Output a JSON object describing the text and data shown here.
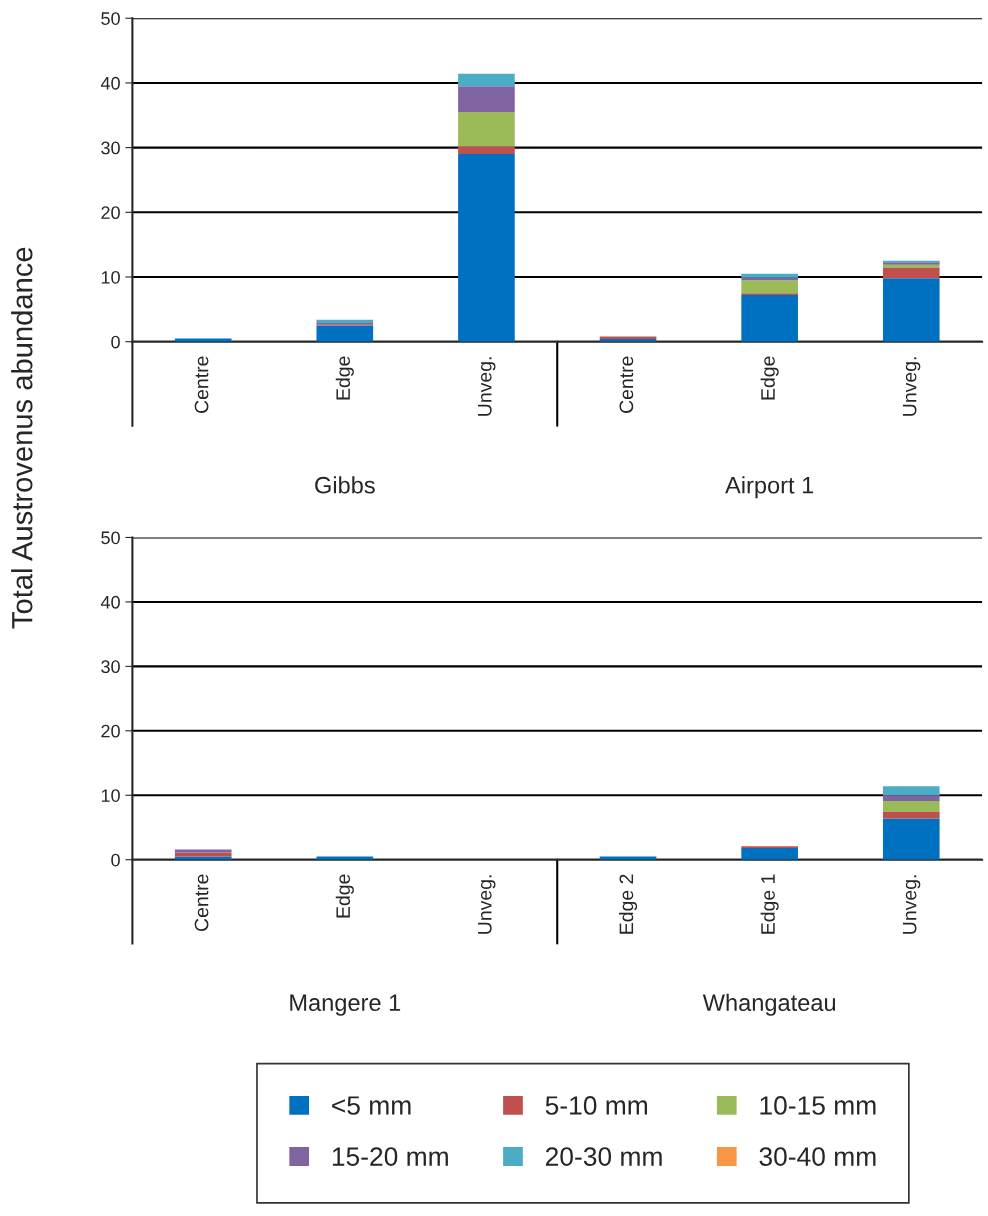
{
  "chart_data": [
    {
      "type": "bar",
      "stacked": true,
      "ylabel": "Total Austrovenus abundance",
      "categories": [
        "Centre",
        "Edge",
        "Unveg.",
        "Centre",
        "Edge",
        "Unveg."
      ],
      "annotations": [
        "Gibbs",
        "Airport 1"
      ],
      "ylim": [
        0,
        50
      ],
      "yticks": [
        0,
        10,
        20,
        30,
        40,
        50
      ],
      "grid": "y",
      "legend": "bottom",
      "series": [
        {
          "name": "<5 mm",
          "color": "#0070c0",
          "values": [
            0.5,
            2.5,
            29.0,
            0.4,
            7.2,
            9.8
          ]
        },
        {
          "name": "5-10 mm",
          "color": "#c0504d",
          "values": [
            0,
            0.2,
            1.2,
            0.4,
            0.3,
            1.6
          ]
        },
        {
          "name": "10-15 mm",
          "color": "#9bbb59",
          "values": [
            0,
            0,
            5.3,
            0,
            2.0,
            0.5
          ]
        },
        {
          "name": "15-20 mm",
          "color": "#8064a2",
          "values": [
            0,
            0.2,
            4.0,
            0,
            0.4,
            0.4
          ]
        },
        {
          "name": "20-30 mm",
          "color": "#4bacc6",
          "values": [
            0,
            0.5,
            1.9,
            0,
            0.6,
            0.2
          ]
        },
        {
          "name": "30-40 mm",
          "color": "#f79646",
          "values": [
            0,
            0,
            0,
            0,
            0,
            0
          ]
        }
      ]
    },
    {
      "type": "bar",
      "stacked": true,
      "categories": [
        "Centre",
        "Edge",
        "Unveg.",
        "Edge 2",
        "Edge 1",
        "Unveg."
      ],
      "annotations": [
        "Mangere 1",
        "Whangateau"
      ],
      "ylim": [
        0,
        50
      ],
      "yticks": [
        0,
        10,
        20,
        30,
        40,
        50
      ],
      "grid": "y",
      "series": [
        {
          "color": "#0070c0",
          "values": [
            0.5,
            0.5,
            0,
            0.5,
            1.8,
            6.4
          ]
        },
        {
          "color": "#c0504d",
          "values": [
            0.6,
            0,
            0,
            0,
            0.3,
            1.0
          ]
        },
        {
          "color": "#9bbb59",
          "values": [
            0,
            0,
            0,
            0,
            0,
            1.7
          ]
        },
        {
          "color": "#8064a2",
          "values": [
            0.5,
            0,
            0,
            0,
            0,
            0.9
          ]
        },
        {
          "color": "#4bacc6",
          "values": [
            0,
            0,
            0,
            0,
            0,
            1.4
          ]
        },
        {
          "color": "#f79646",
          "values": [
            0,
            0,
            0,
            0,
            0,
            0
          ]
        }
      ]
    }
  ]
}
